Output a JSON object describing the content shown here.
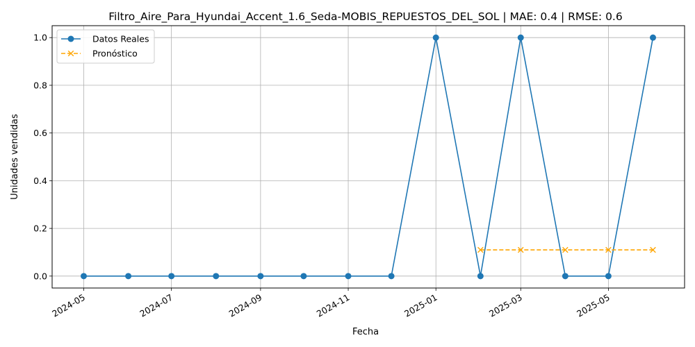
{
  "chart_data": {
    "type": "line",
    "title": "Filtro_Aire_Para_Hyundai_Accent_1.6_Seda-MOBIS_REPUESTOS_DEL_SOL | MAE: 0.4 | RMSE: 0.6",
    "xlabel": "Fecha",
    "ylabel": "Unidades vendidas",
    "xlim": [
      "2024-04-09",
      "2025-06-23"
    ],
    "ylim": [
      -0.05,
      1.05
    ],
    "x_ticks": [
      "2024-05",
      "2024-07",
      "2024-09",
      "2024-11",
      "2025-01",
      "2025-03",
      "2025-05"
    ],
    "y_ticks": [
      "0.0",
      "0.2",
      "0.4",
      "0.6",
      "0.8",
      "1.0"
    ],
    "grid": true,
    "legend_position": "top-left",
    "series": [
      {
        "name": "Datos Reales",
        "color": "#1f77b4",
        "style": "solid",
        "marker": "circle",
        "points": [
          {
            "x": "2024-05-01",
            "y": 0
          },
          {
            "x": "2024-06-01",
            "y": 0
          },
          {
            "x": "2024-07-01",
            "y": 0
          },
          {
            "x": "2024-08-01",
            "y": 0
          },
          {
            "x": "2024-09-01",
            "y": 0
          },
          {
            "x": "2024-10-01",
            "y": 0
          },
          {
            "x": "2024-11-01",
            "y": 0
          },
          {
            "x": "2024-12-01",
            "y": 0
          },
          {
            "x": "2025-01-01",
            "y": 1
          },
          {
            "x": "2025-02-01",
            "y": 0
          },
          {
            "x": "2025-03-01",
            "y": 1
          },
          {
            "x": "2025-04-01",
            "y": 0
          },
          {
            "x": "2025-05-01",
            "y": 0
          },
          {
            "x": "2025-06-01",
            "y": 1
          }
        ]
      },
      {
        "name": "Pronóstico",
        "color": "#ffa500",
        "style": "dashed",
        "marker": "x",
        "points": [
          {
            "x": "2025-02-01",
            "y": 0.11
          },
          {
            "x": "2025-03-01",
            "y": 0.11
          },
          {
            "x": "2025-04-01",
            "y": 0.11
          },
          {
            "x": "2025-05-01",
            "y": 0.11
          },
          {
            "x": "2025-06-01",
            "y": 0.11
          }
        ]
      }
    ]
  }
}
